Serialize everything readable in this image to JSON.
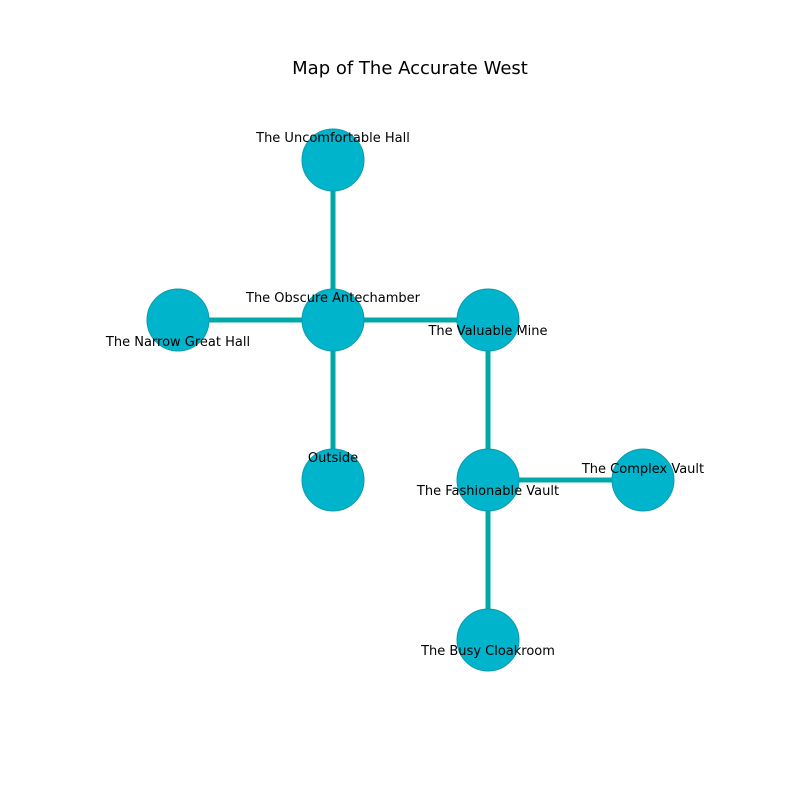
{
  "title": "Map of The Accurate West",
  "colors": {
    "node_fill": "#00b4cc",
    "node_stroke": "#0b9aad",
    "edge": "#00a8a8"
  },
  "rooms": [
    {
      "id": "uncomfortable-hall",
      "label": "The Uncomfortable Hall"
    },
    {
      "id": "narrow-great-hall",
      "label": "The Narrow Great Hall"
    },
    {
      "id": "obscure-antechamber",
      "label": "The Obscure Antechamber"
    },
    {
      "id": "valuable-mine",
      "label": "The Valuable Mine"
    },
    {
      "id": "outside",
      "label": "Outside"
    },
    {
      "id": "fashionable-vault",
      "label": "The Fashionable Vault"
    },
    {
      "id": "complex-vault",
      "label": "The Complex Vault"
    },
    {
      "id": "busy-cloakroom",
      "label": "The Busy Cloakroom"
    }
  ],
  "connections": [
    [
      "uncomfortable-hall",
      "obscure-antechamber"
    ],
    [
      "narrow-great-hall",
      "obscure-antechamber"
    ],
    [
      "obscure-antechamber",
      "valuable-mine"
    ],
    [
      "obscure-antechamber",
      "outside"
    ],
    [
      "valuable-mine",
      "fashionable-vault"
    ],
    [
      "fashionable-vault",
      "complex-vault"
    ],
    [
      "fashionable-vault",
      "busy-cloakroom"
    ]
  ]
}
